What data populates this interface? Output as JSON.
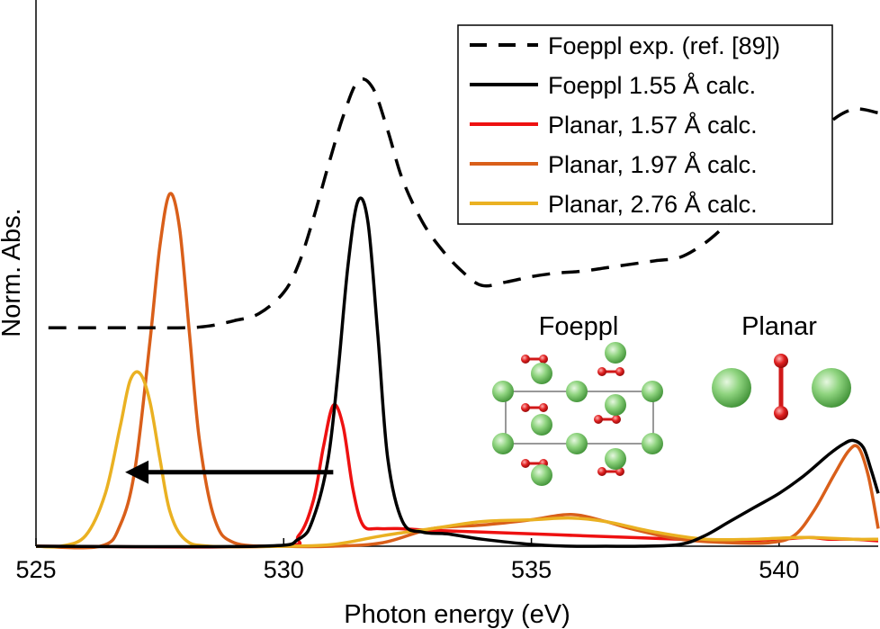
{
  "chart_data": {
    "type": "line",
    "title": "",
    "xlabel": "Photon energy (eV)",
    "ylabel": "Norm. Abs.",
    "xlim": [
      525,
      542
    ],
    "ylim": [
      0,
      1.55
    ],
    "xticks": [
      525,
      530,
      535,
      540
    ],
    "yticks_shown": false,
    "grid": false,
    "legend_position": "top-right",
    "series": [
      {
        "name": "Foeppl exp. (ref. [89])",
        "color": "#000000",
        "dash": "dashed",
        "x": [
          525.25,
          526,
          527,
          528,
          528.5,
          529,
          529.5,
          530,
          530.3,
          530.6,
          530.9,
          531.2,
          531.5,
          531.8,
          532.1,
          532.4,
          532.8,
          533.2,
          533.6,
          534.0,
          534.5,
          535.0,
          535.5,
          536.0,
          536.5,
          537.0,
          537.5,
          538.0,
          538.5,
          539.0,
          539.5,
          540.0,
          540.5,
          541.0,
          541.5,
          542.0
        ],
        "y": [
          0.62,
          0.62,
          0.62,
          0.62,
          0.625,
          0.64,
          0.66,
          0.72,
          0.8,
          0.93,
          1.08,
          1.22,
          1.32,
          1.3,
          1.18,
          1.04,
          0.92,
          0.84,
          0.78,
          0.74,
          0.75,
          0.765,
          0.775,
          0.78,
          0.79,
          0.8,
          0.81,
          0.82,
          0.86,
          0.92,
          0.98,
          1.04,
          1.12,
          1.2,
          1.24,
          1.23
        ]
      },
      {
        "name": "Foeppl 1.55 Å calc.",
        "color": "#000000",
        "dash": "solid",
        "x": [
          525,
          529.5,
          530.3,
          530.6,
          530.9,
          531.1,
          531.3,
          531.5,
          531.7,
          531.9,
          532.1,
          532.4,
          532.8,
          533.3,
          534,
          535,
          535.8,
          536.5,
          537.2,
          538,
          538.5,
          539,
          539.5,
          540,
          540.5,
          541,
          541.3,
          541.5,
          541.7,
          541.85,
          542
        ],
        "y": [
          0,
          0,
          0.02,
          0.08,
          0.25,
          0.5,
          0.8,
          0.98,
          0.92,
          0.6,
          0.25,
          0.07,
          0.04,
          0.035,
          0.02,
          0.005,
          0,
          0,
          0,
          0.005,
          0.03,
          0.07,
          0.11,
          0.15,
          0.2,
          0.26,
          0.29,
          0.3,
          0.28,
          0.22,
          0.15
        ]
      },
      {
        "name": "Planar, 1.57 Å calc.",
        "color": "#ee1111",
        "dash": "solid",
        "x": [
          525,
          529.8,
          530.3,
          530.6,
          530.8,
          531.0,
          531.2,
          531.4,
          531.6,
          531.9,
          532.3,
          533.0,
          534.0,
          535.0,
          536.0,
          537.0,
          538.0,
          539.0,
          540.0,
          540.6,
          541.0,
          541.5,
          542
        ],
        "y": [
          0,
          0,
          0.03,
          0.13,
          0.28,
          0.4,
          0.34,
          0.16,
          0.06,
          0.05,
          0.05,
          0.045,
          0.04,
          0.035,
          0.03,
          0.025,
          0.02,
          0.015,
          0.02,
          0.025,
          0.02,
          0.02,
          0.015
        ]
      },
      {
        "name": "Planar, 1.97 Å calc.",
        "color": "#d95f1a",
        "dash": "solid",
        "x": [
          525,
          526.3,
          526.7,
          527.0,
          527.3,
          527.5,
          527.7,
          527.9,
          528.1,
          528.3,
          528.6,
          529.0,
          530.0,
          531.0,
          532.0,
          533.0,
          534.0,
          535.0,
          535.8,
          536.5,
          537.0,
          538.0,
          539.0,
          539.8,
          540.3,
          540.7,
          541.1,
          541.4,
          541.6,
          541.8,
          542
        ],
        "y": [
          0,
          0,
          0.06,
          0.22,
          0.58,
          0.85,
          1.0,
          0.9,
          0.6,
          0.3,
          0.08,
          0.01,
          0,
          0,
          0.01,
          0.05,
          0.06,
          0.075,
          0.09,
          0.07,
          0.05,
          0.02,
          0.01,
          0.01,
          0.03,
          0.1,
          0.2,
          0.27,
          0.28,
          0.2,
          0.05
        ]
      },
      {
        "name": "Planar, 2.76 Å calc.",
        "color": "#eab122",
        "dash": "solid",
        "x": [
          525,
          525.5,
          526.0,
          526.4,
          526.7,
          526.9,
          527.1,
          527.3,
          527.5,
          527.7,
          528.0,
          528.5,
          530.0,
          531.0,
          532.0,
          533.0,
          534.0,
          535.0,
          535.8,
          536.5,
          537.5,
          538.5,
          539.5,
          540.5,
          541.5,
          542
        ],
        "y": [
          0,
          0,
          0.03,
          0.15,
          0.34,
          0.47,
          0.49,
          0.41,
          0.25,
          0.1,
          0.02,
          0,
          0,
          0.005,
          0.03,
          0.05,
          0.07,
          0.075,
          0.08,
          0.07,
          0.04,
          0.02,
          0.02,
          0.025,
          0.02,
          0.02
        ]
      }
    ],
    "annotations": {
      "arrow": {
        "from_x": 531.0,
        "to_x": 526.8,
        "y": 0.21,
        "color": "#000000"
      },
      "structures": [
        "Foeppl",
        "Planar"
      ]
    }
  }
}
